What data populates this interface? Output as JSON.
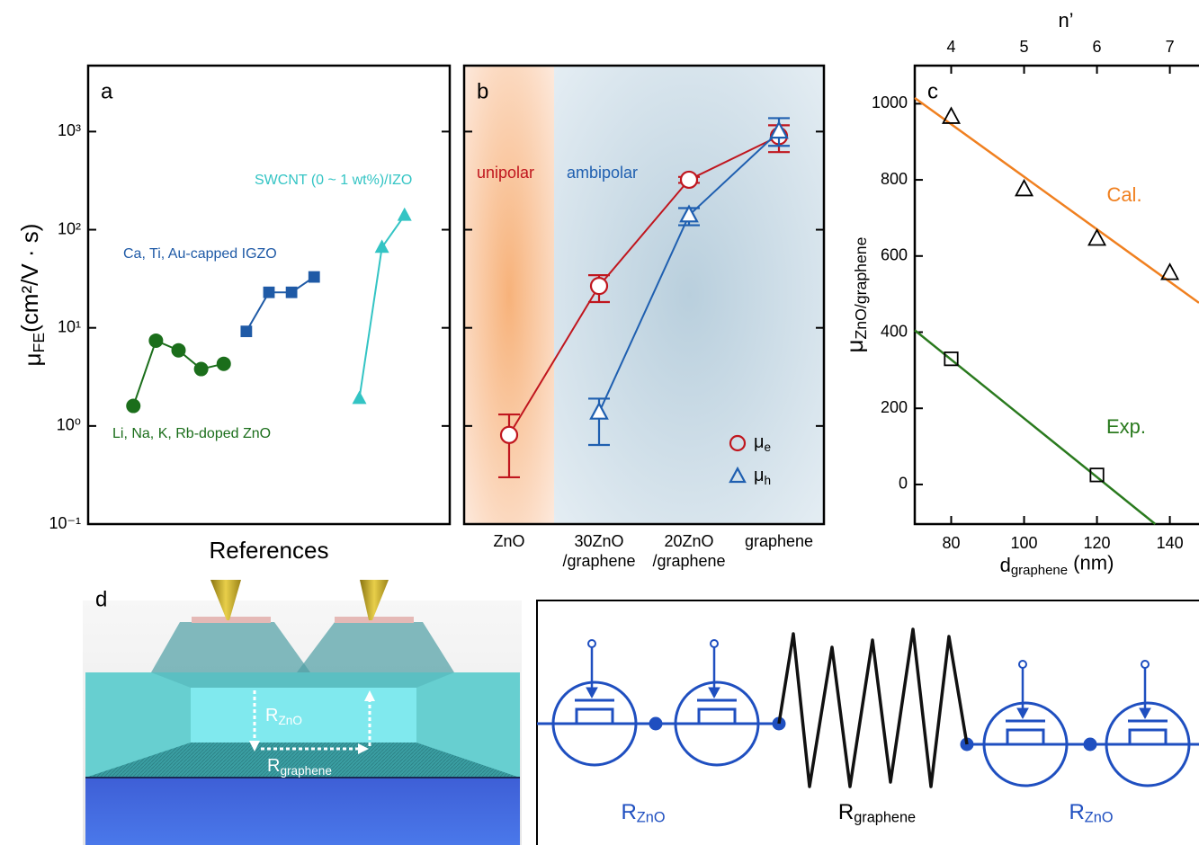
{
  "chart_data": [
    {
      "type": "line",
      "label": "a",
      "ylabel": {
        "text": "μ",
        "sub": "FE",
        "tail": "(cm²/V · s)"
      },
      "xlabel": "References",
      "log_y": true,
      "ylim": [
        0.1,
        4700
      ],
      "xlim": [
        0,
        20
      ],
      "yticks": [
        {
          "value": 0.1,
          "label": "10⁻¹"
        },
        {
          "value": 1,
          "label": "10⁰"
        },
        {
          "value": 10,
          "label": "10¹"
        },
        {
          "value": 100,
          "label": "10²"
        },
        {
          "value": 1000,
          "label": "10³"
        }
      ],
      "series": [
        {
          "name": "Li, Na, K, Rb-doped ZnO",
          "color": "#1b6e1b",
          "marker": "circle",
          "x": [
            2.5,
            3.75,
            5,
            6.25,
            7.5
          ],
          "values": [
            1.6,
            7.4,
            5.9,
            3.8,
            4.3
          ]
        },
        {
          "name": "Ca, Ti, Au-capped IGZO",
          "color": "#1f5aa6",
          "marker": "square",
          "x": [
            8.75,
            10,
            11.25,
            12.5
          ],
          "values": [
            9.2,
            23,
            23,
            33
          ]
        },
        {
          "name": "SWCNT (0 ~ 1 wt%)/IZO",
          "color": "#33c4c4",
          "marker": "triangle",
          "x": [
            15,
            16.25,
            17.5
          ],
          "values": [
            1.9,
            66,
            140
          ]
        }
      ]
    },
    {
      "type": "line",
      "label": "b",
      "log_y": true,
      "ylim": [
        0.1,
        4700
      ],
      "yticks": [
        0.1,
        1,
        10,
        100,
        1000
      ],
      "tick_labels": false,
      "categories": [
        [
          "ZnO"
        ],
        [
          "30ZnO",
          "/graphene"
        ],
        [
          "20ZnO",
          "/graphene"
        ],
        [
          "graphene"
        ]
      ],
      "regions": [
        "unipolar",
        "ambipolar"
      ],
      "open_markers": true,
      "legend": "lower right",
      "series": [
        {
          "name": {
            "text": "μ",
            "sub": "e"
          },
          "color": "#c0161e",
          "marker": "circle",
          "values": [
            0.81,
            26.7,
            323,
            900
          ],
          "lower": [
            0.3,
            18.3,
            300,
            618
          ],
          "upper": [
            1.31,
            34.4,
            345,
            1158
          ]
        },
        {
          "name": {
            "text": "μ",
            "sub": "h"
          },
          "color": "#1f5fb0",
          "marker": "triangle",
          "values": [
            null,
            1.37,
            140,
            1000
          ],
          "lower": [
            null,
            0.64,
            111,
            715
          ],
          "upper": [
            null,
            1.9,
            166,
            1370
          ]
        }
      ]
    },
    {
      "type": "line",
      "label": "c",
      "ylabel": {
        "text": "μ",
        "sub": "ZnO/graphene"
      },
      "xlabel": {
        "text": "d",
        "sub": "graphene",
        "tail": " (nm)"
      },
      "x2label": "n’",
      "xlim": [
        70,
        148
      ],
      "xticks": [
        80,
        100,
        120,
        140
      ],
      "x2lim": [
        3.5,
        7.4
      ],
      "x2ticks": [
        4,
        5,
        6,
        7
      ],
      "ylim": [
        -104,
        1100
      ],
      "yticks": [
        0,
        200,
        400,
        600,
        800,
        1000
      ],
      "series": [
        {
          "name": "Cal.",
          "color": "#f08020",
          "x": [
            70,
            148
          ],
          "values": [
            1015,
            477
          ],
          "marker": "triangle",
          "marker_color": "#000000",
          "marker_x": [
            80,
            100,
            120,
            140
          ],
          "marker_values": [
            965,
            775,
            645,
            555
          ]
        },
        {
          "name": "Exp.",
          "color": "#2a7a1e",
          "x": [
            70,
            136
          ],
          "values": [
            405,
            -104
          ],
          "marker": "square",
          "marker_color": "#000000",
          "marker_x": [
            80,
            120
          ],
          "marker_values": [
            330,
            25
          ]
        }
      ]
    }
  ],
  "diagram": {
    "label": "d",
    "labels": [
      {
        "text": "R",
        "sub": "ZnO"
      },
      {
        "text": "R",
        "sub": "graphene"
      }
    ]
  },
  "circuit": {
    "labels": [
      {
        "text": "R",
        "sub": "ZnO"
      },
      {
        "text": "R",
        "sub": "graphene"
      },
      {
        "text": "R",
        "sub": "ZnO"
      }
    ]
  }
}
